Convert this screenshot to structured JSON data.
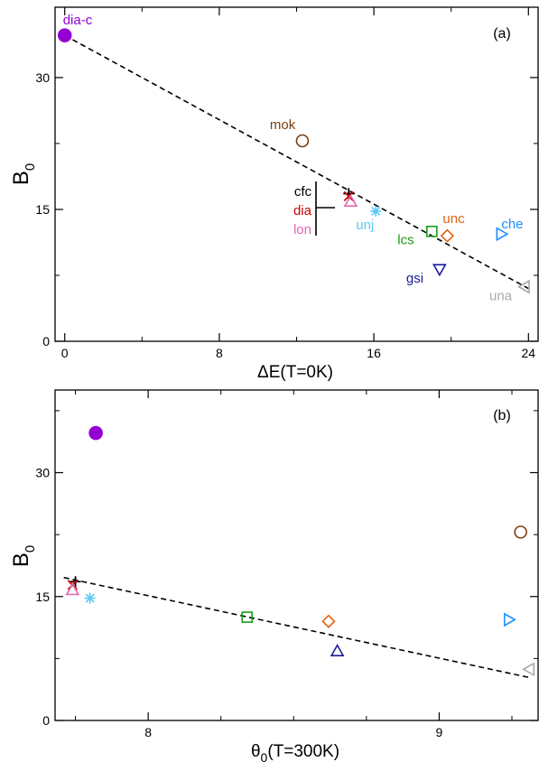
{
  "chart_data": [
    {
      "type": "scatter",
      "panel_label": "(a)",
      "xlabel": "ΔE(T=0K)",
      "ylabel_main": "B",
      "ylabel_sub": "0",
      "xlim": [
        -0.5,
        24.5
      ],
      "ylim": [
        0,
        38
      ],
      "xticks": [
        0,
        8,
        16,
        24
      ],
      "xminor": [
        4,
        12,
        20
      ],
      "yticks": [
        0,
        15,
        30
      ],
      "yminor": [
        7.5,
        22.5
      ],
      "fit_line": {
        "x": [
          0,
          24
        ],
        "y": [
          34.8,
          6.0
        ],
        "style": "dashed"
      },
      "points": [
        {
          "name": "dia-c",
          "x": 0.0,
          "y": 34.8,
          "marker": "filled-circle",
          "color": "#9400d3",
          "label": "dia-c"
        },
        {
          "name": "mok",
          "x": 12.3,
          "y": 22.8,
          "marker": "circle",
          "color": "#7a3f12",
          "label": "mok"
        },
        {
          "name": "cfc",
          "x": 14.7,
          "y": 16.8,
          "marker": "plus",
          "color": "#000000",
          "label": "cfc"
        },
        {
          "name": "dia",
          "x": 14.7,
          "y": 16.5,
          "marker": "cross",
          "color": "#cc0000",
          "label": "dia"
        },
        {
          "name": "lon",
          "x": 14.8,
          "y": 15.9,
          "marker": "triangle-up",
          "color": "#e06ab0",
          "label": "lon"
        },
        {
          "name": "unj",
          "x": 16.1,
          "y": 14.8,
          "marker": "star",
          "color": "#5cc8f5",
          "label": "unj"
        },
        {
          "name": "lcs",
          "x": 19.0,
          "y": 12.5,
          "marker": "square",
          "color": "#1a9a1a",
          "label": "lcs"
        },
        {
          "name": "unc",
          "x": 19.8,
          "y": 12.0,
          "marker": "diamond",
          "color": "#e06010",
          "label": "unc"
        },
        {
          "name": "gsi",
          "x": 19.4,
          "y": 8.2,
          "marker": "triangle-down",
          "color": "#1a1a9a",
          "label": "gsi"
        },
        {
          "name": "che",
          "x": 22.6,
          "y": 12.2,
          "marker": "triangle-right",
          "color": "#1e90ff",
          "label": "che"
        },
        {
          "name": "una",
          "x": 23.8,
          "y": 6.2,
          "marker": "triangle-left",
          "color": "#a8a8a8",
          "label": "una"
        }
      ]
    },
    {
      "type": "scatter",
      "panel_label": "(b)",
      "xlabel_main": "θ",
      "xlabel_sub": "0",
      "xlabel_rest": "(T=300K)",
      "ylabel_main": "B",
      "ylabel_sub": "0",
      "xlim": [
        7.68,
        9.34
      ],
      "ylim": [
        0,
        40
      ],
      "xticks": [
        8,
        9
      ],
      "xminor": [
        7.75,
        8.25,
        8.5,
        8.75,
        9.25
      ],
      "yticks": [
        0,
        15,
        30
      ],
      "yminor": [
        7.5,
        22.5,
        37.5
      ],
      "fit_line": {
        "x": [
          7.71,
          9.31
        ],
        "y": [
          17.3,
          5.2
        ],
        "style": "dashed"
      },
      "points": [
        {
          "name": "dia-c",
          "x": 7.82,
          "y": 34.8,
          "marker": "filled-circle",
          "color": "#9400d3"
        },
        {
          "name": "mok",
          "x": 9.28,
          "y": 22.8,
          "marker": "circle",
          "color": "#7a3f12"
        },
        {
          "name": "cfc",
          "x": 7.75,
          "y": 16.8,
          "marker": "plus",
          "color": "#000000"
        },
        {
          "name": "dia",
          "x": 7.74,
          "y": 16.4,
          "marker": "cross",
          "color": "#cc0000"
        },
        {
          "name": "lon",
          "x": 7.74,
          "y": 15.8,
          "marker": "triangle-up",
          "color": "#e06ab0"
        },
        {
          "name": "unj",
          "x": 7.8,
          "y": 14.8,
          "marker": "star",
          "color": "#5cc8f5"
        },
        {
          "name": "lcs",
          "x": 8.34,
          "y": 12.5,
          "marker": "square",
          "color": "#1a9a1a"
        },
        {
          "name": "unc",
          "x": 8.62,
          "y": 12.0,
          "marker": "diamond",
          "color": "#e06010"
        },
        {
          "name": "gsi",
          "x": 8.65,
          "y": 8.4,
          "marker": "triangle-up",
          "color": "#1a1a9a"
        },
        {
          "name": "che",
          "x": 9.24,
          "y": 12.2,
          "marker": "triangle-right",
          "color": "#1e90ff"
        },
        {
          "name": "una",
          "x": 9.31,
          "y": 6.2,
          "marker": "triangle-left",
          "color": "#a8a8a8"
        }
      ]
    }
  ]
}
